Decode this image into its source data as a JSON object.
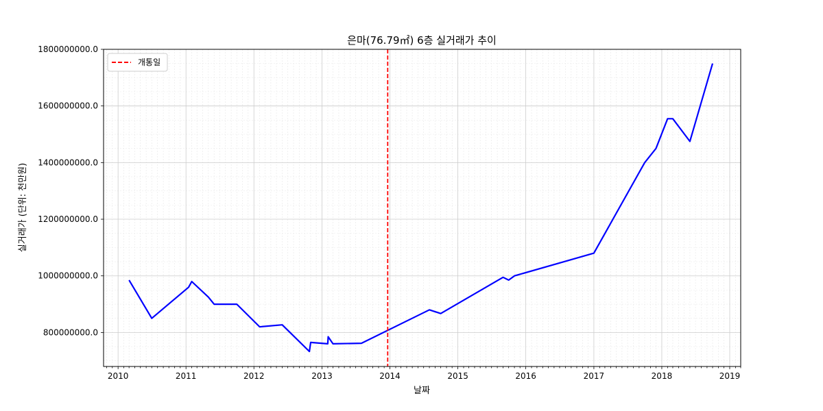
{
  "chart_data": {
    "type": "line",
    "title": "은마(76.79㎡) 6층 실거래가 추이",
    "xlabel": "날짜",
    "ylabel": "실거래가 (단위: 천만원)",
    "x_ticks": [
      "2010",
      "2011",
      "2012",
      "2013",
      "2014",
      "2015",
      "2016",
      "2017",
      "2018",
      "2019"
    ],
    "y_ticks": [
      800000000,
      1000000000,
      1200000000,
      1400000000,
      1600000000,
      1800000000
    ],
    "y_tick_labels": [
      "800000000.0",
      "1000000000.0",
      "1200000000.0",
      "1400000000.0",
      "1600000000.0",
      "1800000000.0"
    ],
    "xlim": [
      "2009-10-15",
      "2019-03-01"
    ],
    "ylim": [
      680000000,
      1800000000
    ],
    "grid": true,
    "legend_position": "top-left",
    "legend": [
      {
        "label": "개통일",
        "color": "#ff0000",
        "style": "dashed"
      }
    ],
    "reference_line": {
      "x": "2013-12-20",
      "label": "개통일"
    },
    "series": [
      {
        "color": "#0000ff",
        "x": [
          "2010-03-01",
          "2010-07-01",
          "2011-01-15",
          "2011-02-01",
          "2011-05-01",
          "2011-06-01",
          "2011-10-01",
          "2012-02-01",
          "2012-06-01",
          "2012-10-25",
          "2012-11-01",
          "2013-02-01",
          "2013-02-03",
          "2013-03-01",
          "2013-08-01",
          "2014-08-01",
          "2014-10-01",
          "2015-09-01",
          "2015-10-01",
          "2015-11-01",
          "2017-01-01",
          "2017-10-01",
          "2017-12-01",
          "2018-02-01",
          "2018-03-01",
          "2018-06-01",
          "2018-10-01"
        ],
        "values": [
          985000000,
          850000000,
          960000000,
          980000000,
          925000000,
          900000000,
          900000000,
          820000000,
          827000000,
          733000000,
          765000000,
          760000000,
          785000000,
          760000000,
          762000000,
          880000000,
          867000000,
          995000000,
          985000000,
          1000000000,
          1080000000,
          1400000000,
          1450000000,
          1555000000,
          1555000000,
          1475000000,
          1750000000
        ]
      }
    ]
  }
}
